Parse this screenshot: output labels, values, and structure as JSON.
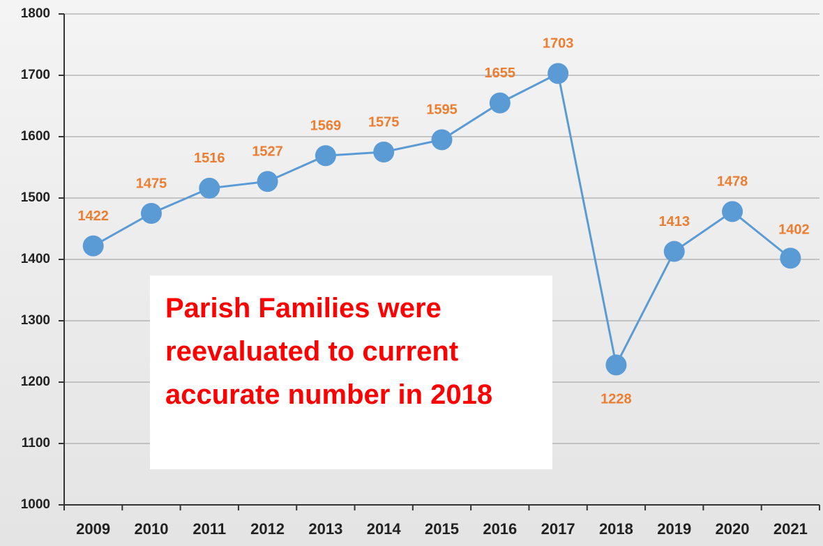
{
  "chart_data": {
    "type": "line",
    "categories": [
      "2009",
      "2010",
      "2011",
      "2012",
      "2013",
      "2014",
      "2015",
      "2016",
      "2017",
      "2018",
      "2019",
      "2020",
      "2021"
    ],
    "series": [
      {
        "color": "#5b9bd5",
        "label_color": "#ed7d31",
        "values": [
          1422,
          1475,
          1516,
          1527,
          1569,
          1575,
          1595,
          1655,
          1703,
          1228,
          1413,
          1478,
          1402
        ]
      }
    ],
    "ylim": [
      1000,
      1800
    ],
    "yticks": [
      1000,
      1100,
      1200,
      1300,
      1400,
      1500,
      1600,
      1700,
      1800
    ],
    "grid": true,
    "annotation": "Parish Families were reevaluated to current accurate number in 2018"
  }
}
